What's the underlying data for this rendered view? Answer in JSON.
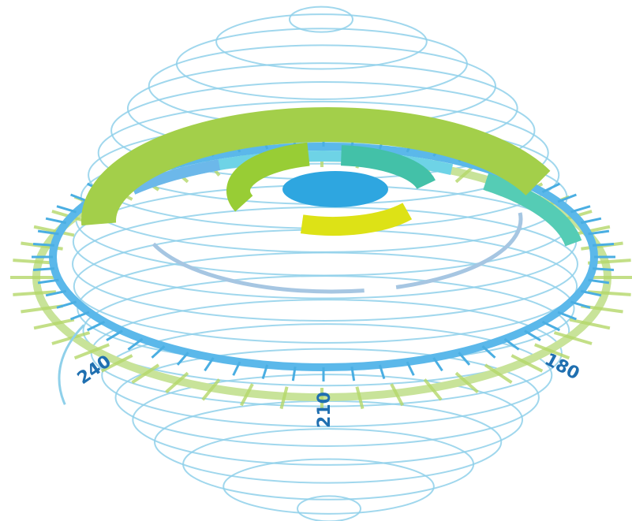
{
  "labels": {
    "left": "240",
    "bottom": "210",
    "right": "180"
  }
}
